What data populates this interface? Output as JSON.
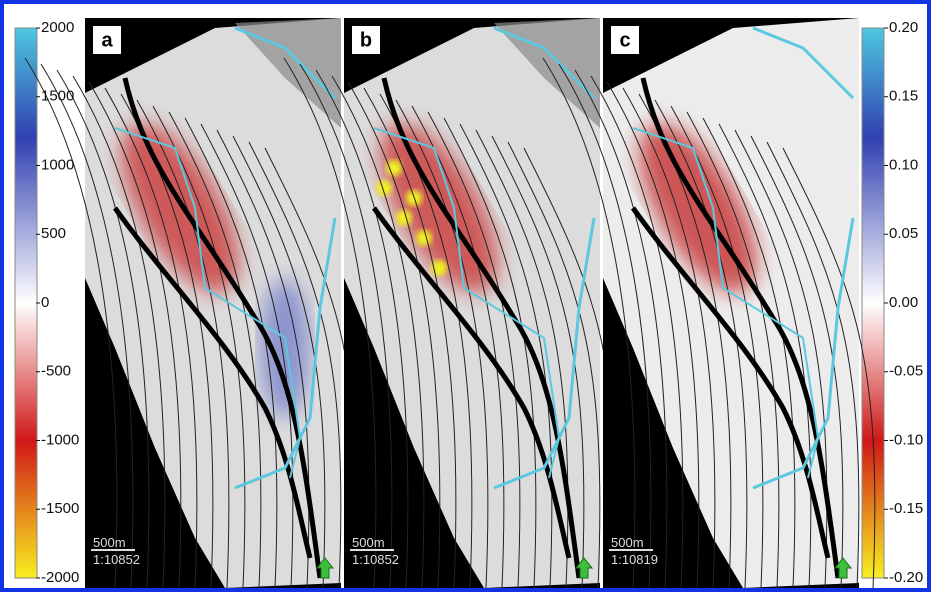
{
  "panels": [
    {
      "label": "a",
      "scale_distance": "500m",
      "scale_ratio": "1:10852"
    },
    {
      "label": "b",
      "scale_distance": "500m",
      "scale_ratio": "1:10852"
    },
    {
      "label": "c",
      "scale_distance": "500m",
      "scale_ratio": "1:10819"
    }
  ],
  "left_colorbar": {
    "ticks": [
      "2000",
      "1500",
      "1000",
      "500",
      "0",
      "-500",
      "-1000",
      "-1500",
      "-2000"
    ]
  },
  "right_colorbar": {
    "ticks": [
      "0.20",
      "0.15",
      "0.10",
      "0.05",
      "0.00",
      "-0.05",
      "-0.10",
      "-0.15",
      "-0.20"
    ]
  }
}
